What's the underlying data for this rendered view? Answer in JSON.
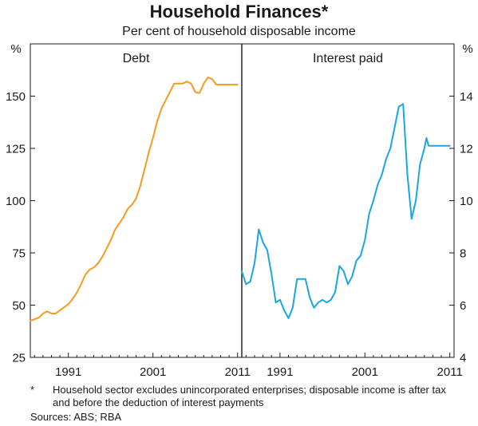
{
  "title": "Household Finances*",
  "subtitle": "Per cent of household disposable income",
  "footnote": {
    "marker": "*",
    "text": "Household sector excludes unincorporated enterprises; disposable income is after tax and before the deduction of interest payments"
  },
  "sources": "Sources: ABS; RBA",
  "colors": {
    "debt": "#f39c1f",
    "interest": "#1aa7e0",
    "axis": "#1a1a1a",
    "divider": "#1a1a1a"
  },
  "chart_data": [
    {
      "type": "line",
      "panel_title": "Debt",
      "ylabel": "%",
      "ylim": [
        25,
        175
      ],
      "yticks": [
        25,
        50,
        75,
        100,
        125,
        150
      ],
      "xlim": [
        1986.5,
        2011.5
      ],
      "xticks": [
        1991,
        2001,
        2011
      ],
      "xtick_labels": [
        "1991",
        "2001",
        "2011"
      ],
      "series": [
        {
          "x": [
            1986.5,
            1987.5,
            1988.0,
            1988.5,
            1989.0,
            1989.5,
            1990.0,
            1990.5,
            1991.0,
            1991.5,
            1992.0,
            1992.5,
            1993.0,
            1993.5,
            1994.0,
            1994.5,
            1995.0,
            1995.5,
            1996.0,
            1996.5,
            1997.0,
            1997.5,
            1998.0,
            1998.5,
            1999.0,
            1999.5,
            2000.0,
            2000.5,
            2001.0,
            2001.5,
            2002.0,
            2002.5,
            2003.0,
            2003.5,
            2004.0,
            2004.5,
            2005.0,
            2005.5,
            2006.0,
            2006.5,
            2007.0,
            2007.5,
            2008.0,
            2008.5,
            2009.0,
            2009.5,
            2010.0,
            2010.5,
            2011.0
          ],
          "values": [
            42.5,
            44,
            46,
            47,
            46,
            46,
            47.5,
            49,
            50.5,
            53,
            56,
            60,
            64.5,
            67,
            68,
            70,
            73,
            77,
            81,
            86,
            89,
            92,
            96,
            98,
            101,
            107,
            115,
            123,
            130,
            138,
            144,
            148,
            152,
            156,
            156,
            156,
            157,
            156,
            152,
            151.5,
            156,
            159,
            158,
            155.5,
            155.5,
            155.5,
            155.5,
            155.5,
            155.5
          ]
        }
      ]
    },
    {
      "type": "line",
      "panel_title": "Interest paid",
      "ylabel": "%",
      "ylim": [
        4,
        16
      ],
      "yticks": [
        4,
        6,
        8,
        10,
        12,
        14
      ],
      "xlim": [
        1986.5,
        2011.5
      ],
      "xticks": [
        1991,
        2001,
        2011
      ],
      "xtick_labels": [
        "1991",
        "2001",
        "2011"
      ],
      "series": [
        {
          "x": [
            1986.5,
            1987.0,
            1987.5,
            1988.0,
            1988.5,
            1989.0,
            1989.5,
            1990.0,
            1990.5,
            1991.0,
            1991.5,
            1992.0,
            1992.5,
            1993.0,
            1993.5,
            1994.0,
            1994.5,
            1995.0,
            1995.5,
            1996.0,
            1996.5,
            1997.0,
            1997.5,
            1998.0,
            1998.5,
            1999.0,
            1999.5,
            2000.0,
            2000.5,
            2001.0,
            2001.5,
            2002.0,
            2002.5,
            2003.0,
            2003.5,
            2004.0,
            2004.5,
            2005.0,
            2005.5,
            2006.0,
            2006.5,
            2007.0,
            2007.5,
            2008.0,
            2008.25,
            2008.5,
            2009.0,
            2009.5,
            2010.0,
            2010.5,
            2011.0
          ],
          "values": [
            7.3,
            6.8,
            6.9,
            7.6,
            8.9,
            8.4,
            8.1,
            7.2,
            6.1,
            6.2,
            5.8,
            5.5,
            5.9,
            7.0,
            7.0,
            7.0,
            6.3,
            5.9,
            6.1,
            6.2,
            6.1,
            6.2,
            6.5,
            7.5,
            7.3,
            6.8,
            7.1,
            7.7,
            7.9,
            8.5,
            9.5,
            10.0,
            10.6,
            11.0,
            11.6,
            12.0,
            12.8,
            13.6,
            13.7,
            11.0,
            9.3,
            10.0,
            11.4,
            12.0,
            12.4,
            12.1,
            12.1,
            12.1,
            12.1,
            12.1,
            12.1
          ]
        }
      ]
    }
  ]
}
